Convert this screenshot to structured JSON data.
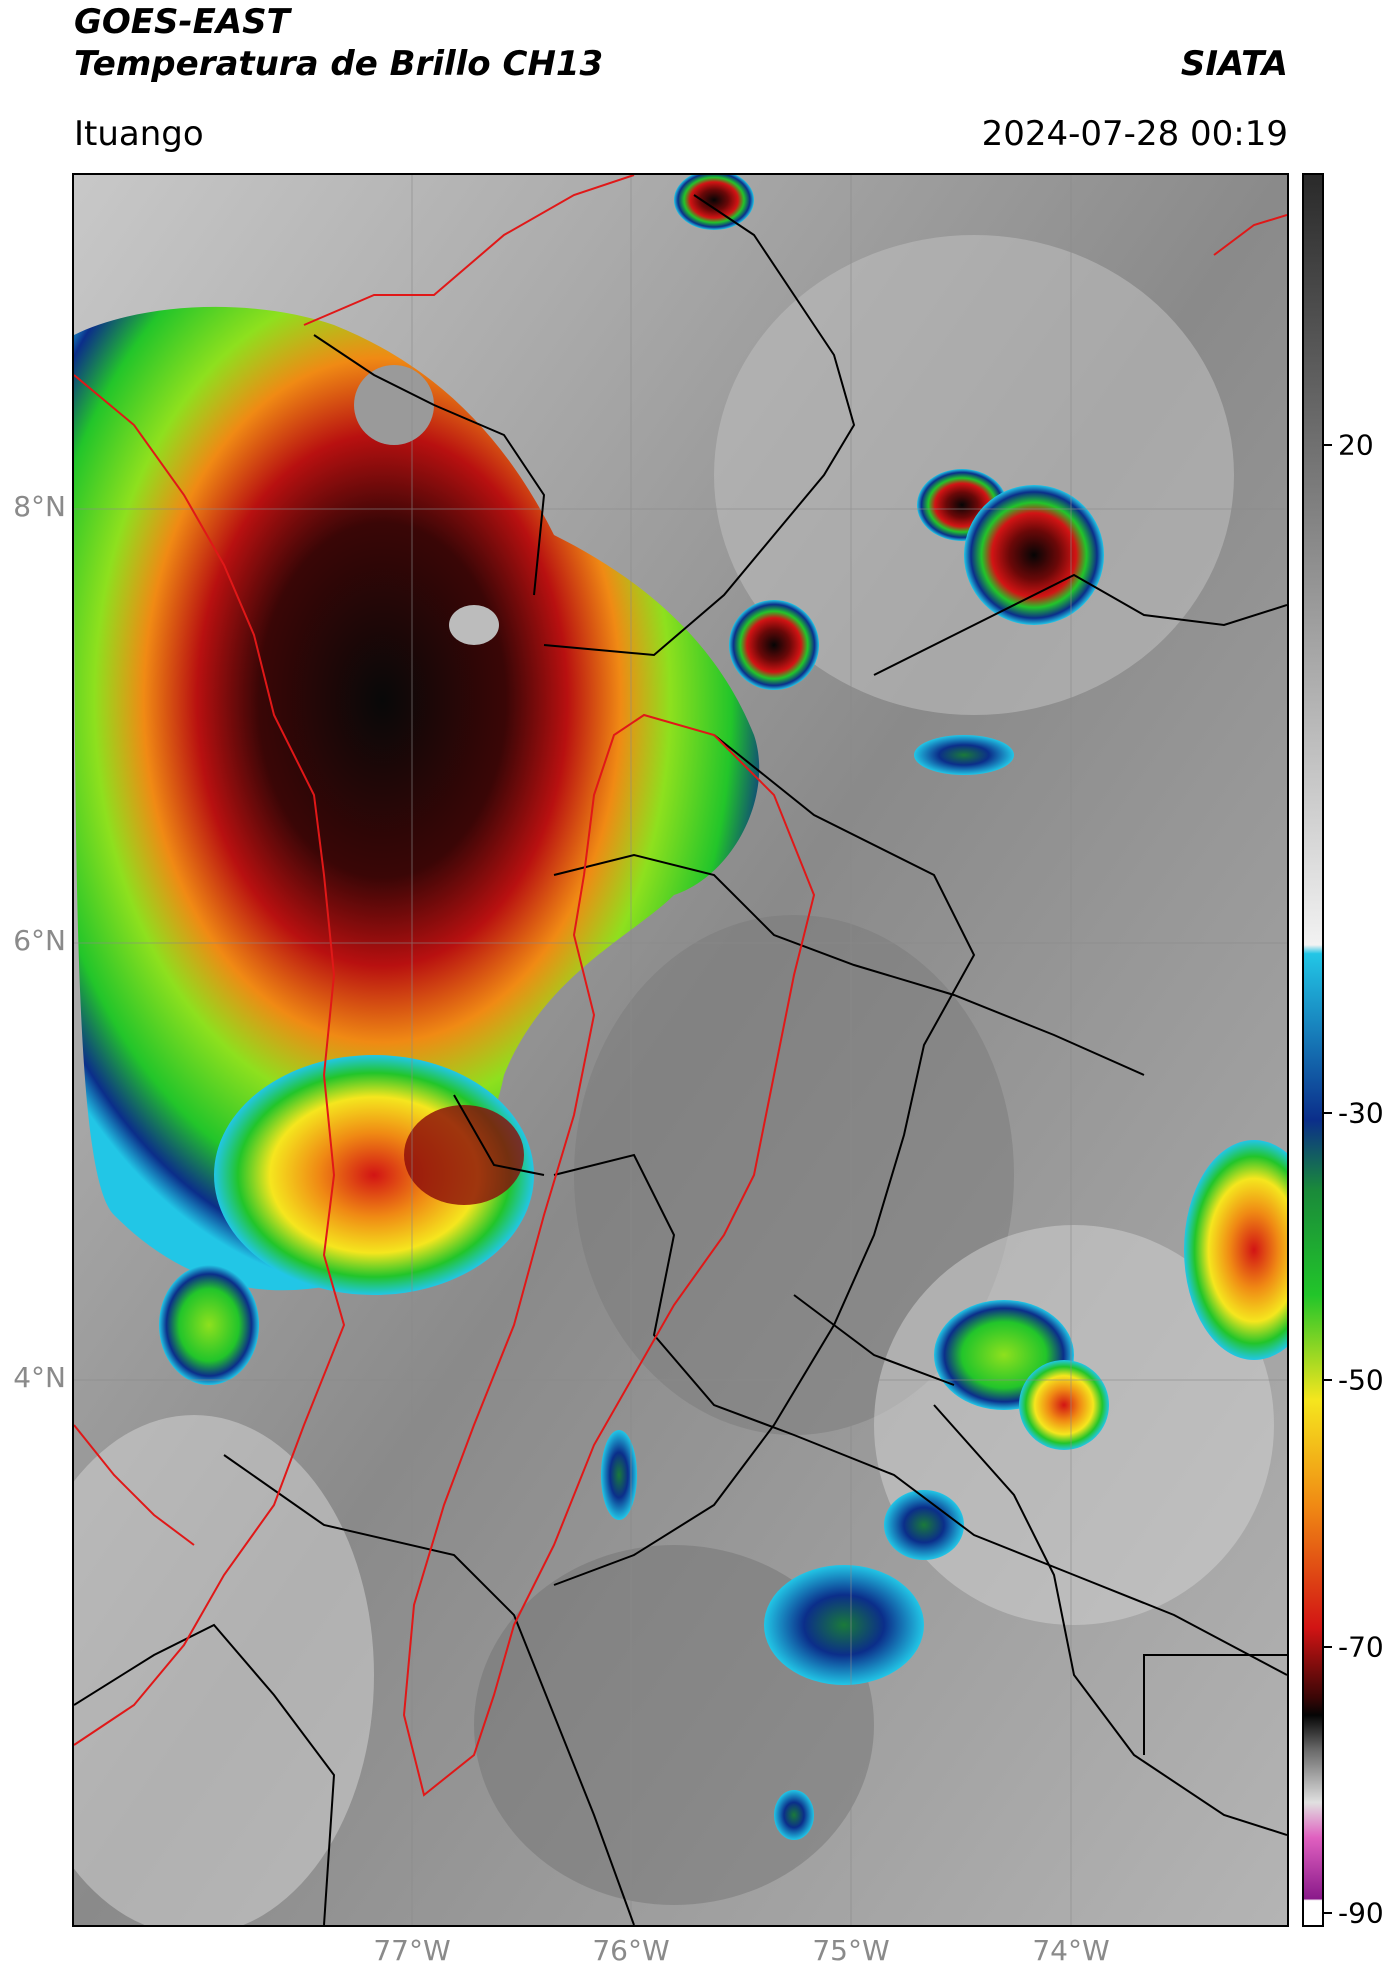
{
  "header": {
    "title_line1": "GOES-EAST",
    "title_line2": "Temperatura de Brillo CH13",
    "organization": "SIATA",
    "region": "Ituango",
    "timestamp": "2024-07-28 00:19"
  },
  "map": {
    "lat_labels": [
      "8°N",
      "6°N",
      "4°N"
    ],
    "lon_labels": [
      "77°W",
      "76°W",
      "75°W",
      "74°W"
    ]
  },
  "colorbar": {
    "tick_labels": [
      "20",
      "-30",
      "-50",
      "-70",
      "-90"
    ],
    "colors": {
      "warm_top": "#2a2a2a",
      "warm_bottom": "#f2f2f2",
      "cyan": "#22c6e6",
      "blue": "#0b2e8a",
      "green": "#22c52a",
      "yellow": "#f5e61e",
      "orange": "#f08a14",
      "red": "#d21414",
      "dark_red": "#3a0606",
      "black": "#050505",
      "pink": "#e060c0",
      "purple": "#8a1a8a"
    }
  }
}
